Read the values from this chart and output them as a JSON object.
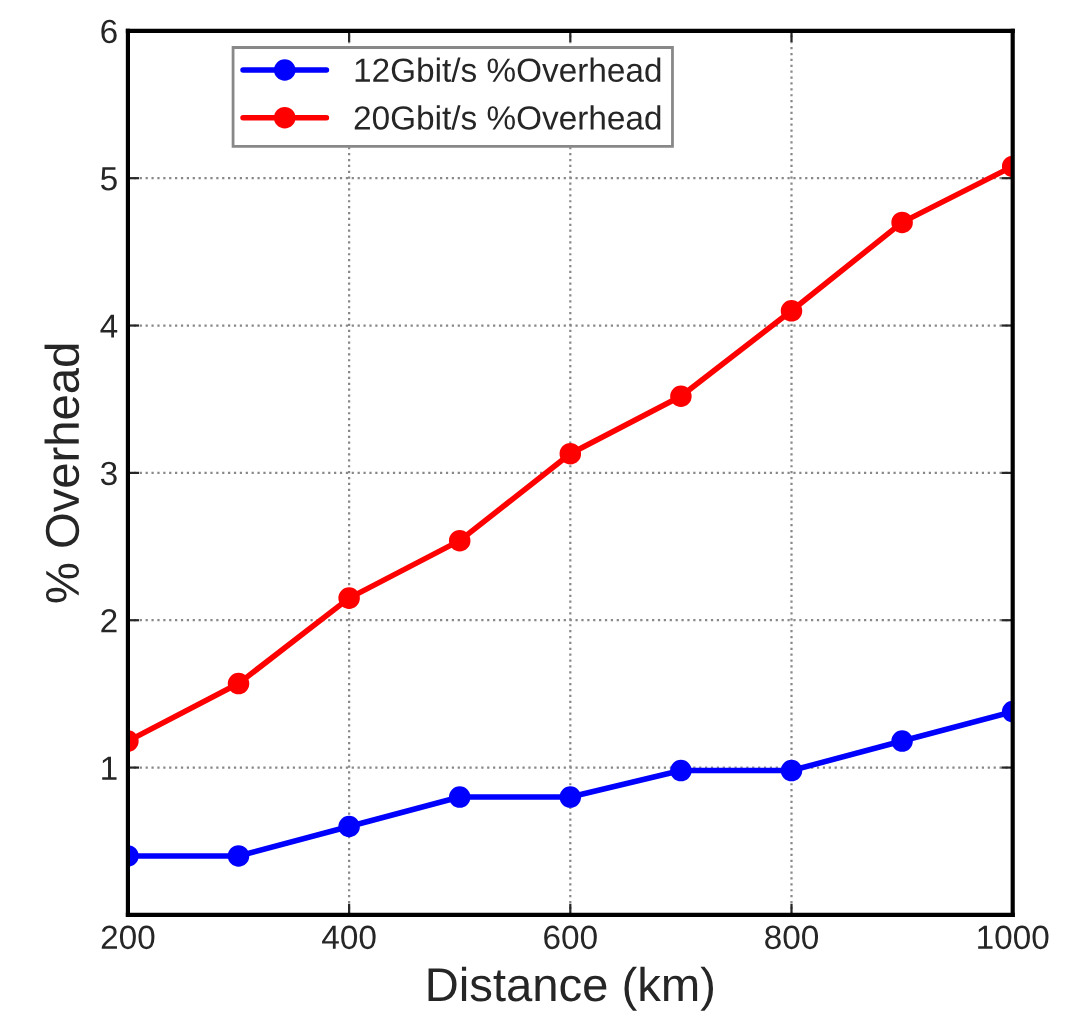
{
  "chart_data": {
    "type": "line",
    "xlabel": "Distance (km)",
    "ylabel": "% Overhead",
    "x": [
      200,
      300,
      400,
      500,
      600,
      700,
      800,
      900,
      1000
    ],
    "series": [
      {
        "name": "12Gbit/s %Overhead",
        "color": "#0000ff",
        "values": [
          0.4,
          0.4,
          0.6,
          0.8,
          0.8,
          0.98,
          0.98,
          1.18,
          1.38
        ]
      },
      {
        "name": "20Gbit/s %Overhead",
        "color": "#ff0000",
        "values": [
          1.18,
          1.57,
          2.15,
          2.54,
          3.13,
          3.52,
          4.1,
          4.7,
          5.08
        ]
      }
    ],
    "xlim": [
      200,
      1000
    ],
    "xticks": [
      200,
      400,
      600,
      800,
      1000
    ],
    "ylim": [
      0,
      6
    ],
    "yticks": [
      1,
      2,
      3,
      4,
      5,
      6
    ],
    "grid": true,
    "legend": "top left",
    "marker": "circle",
    "line_style": "solid"
  }
}
